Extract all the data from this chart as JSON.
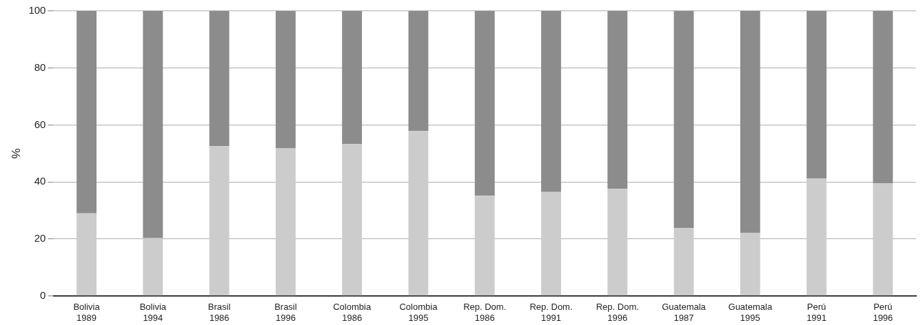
{
  "chart_data": {
    "type": "bar",
    "stacked": true,
    "ylabel": "%",
    "categories": [
      "Bolivia\n1989",
      "Bolivia\n1994",
      "Brasil\n1986",
      "Brasil\n1996",
      "Colombia\n1986",
      "Colombia\n1995",
      "Rep. Dom.\n1986",
      "Rep. Dom.\n1991",
      "Rep. Dom.\n1996",
      "Guatemala\n1987",
      "Guatemala\n1995",
      "Perú\n1991",
      "Perú\n1996"
    ],
    "series": [
      {
        "color": "#cccccc",
        "values": [
          29.0,
          20.3,
          52.6,
          51.8,
          53.3,
          57.9,
          35.2,
          36.5,
          37.6,
          23.8,
          22.2,
          41.3,
          39.6
        ]
      },
      {
        "color": "#8c8c8c",
        "values": [
          71.0,
          79.7,
          47.4,
          48.2,
          46.7,
          42.1,
          64.8,
          63.5,
          62.4,
          76.2,
          77.8,
          58.7,
          60.4
        ]
      }
    ],
    "ylim": [
      0,
      100
    ],
    "yticks": [
      0,
      20,
      40,
      60,
      80,
      100
    ],
    "grid": "y",
    "legend": false
  }
}
